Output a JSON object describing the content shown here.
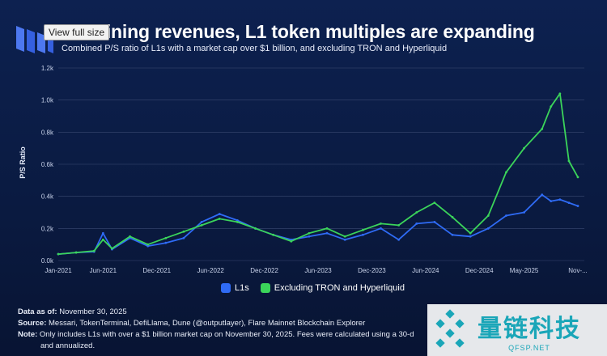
{
  "header": {
    "tooltip": "View full size",
    "title": "t declining revenues, L1 token multiples are expanding",
    "subtitle": "Combined P/S ratio of L1s with a market cap over $1 billion, and excluding TRON and Hyperliquid"
  },
  "colors": {
    "l1s": "#2f6bf5",
    "excl": "#3bd45a",
    "background": "#0b1a3d",
    "grid": "#3a4a72"
  },
  "legend": {
    "l1s": "L1s",
    "excl": "Excluding TRON and Hyperliquid"
  },
  "notes": {
    "data_as_of_label": "Data as of:",
    "data_as_of_value": " November 30, 2025",
    "source_label": "Source:",
    "source_value": " Messari, TokenTerminal, DefiLlama, Dune (@outputlayer), Flare Mainnet Blockchain Explorer",
    "note_label": "Note:",
    "note_value": " Only includes L1s with over a $1 billion market cap on November 30, 2025. Fees were calculated using a 30-d",
    "note_value2": "and annualized."
  },
  "watermark": {
    "cn": "量链科技",
    "en": "QFSP.NET"
  },
  "chart_data": {
    "type": "line",
    "ylabel": "P/S Ratio",
    "ylim": [
      0,
      1200
    ],
    "y_ticks": [
      "0.0k",
      "0.2k",
      "0.4k",
      "0.6k",
      "0.8k",
      "1.0k",
      "1.2k"
    ],
    "y_tick_values": [
      0,
      200,
      400,
      600,
      800,
      1000,
      1200
    ],
    "x_ticks": [
      "Jan-2021",
      "Jun-2021",
      "Dec-2021",
      "Jun-2022",
      "Dec-2022",
      "Jun-2023",
      "Dec-2023",
      "Jun-2024",
      "Dec-2024",
      "May-2025",
      "Nov-..."
    ],
    "x_tick_dates": [
      "2021-01",
      "2021-06",
      "2021-12",
      "2022-06",
      "2022-12",
      "2023-06",
      "2023-12",
      "2024-06",
      "2024-12",
      "2025-05",
      "2025-11"
    ],
    "grid": true,
    "legend_position": "bottom-center",
    "x": [
      "2021-01",
      "2021-03",
      "2021-05",
      "2021-06",
      "2021-07",
      "2021-09",
      "2021-11",
      "2022-01",
      "2022-03",
      "2022-05",
      "2022-07",
      "2022-09",
      "2022-11",
      "2023-01",
      "2023-03",
      "2023-05",
      "2023-07",
      "2023-09",
      "2023-11",
      "2024-01",
      "2024-03",
      "2024-05",
      "2024-07",
      "2024-09",
      "2024-11",
      "2025-01",
      "2025-03",
      "2025-05",
      "2025-07",
      "2025-08",
      "2025-09",
      "2025-10",
      "2025-11"
    ],
    "series": [
      {
        "name": "L1s",
        "values": [
          40,
          50,
          55,
          170,
          70,
          140,
          90,
          110,
          140,
          240,
          290,
          250,
          200,
          160,
          130,
          150,
          170,
          130,
          160,
          200,
          130,
          230,
          240,
          160,
          150,
          200,
          280,
          300,
          410,
          370,
          380,
          360,
          340
        ]
      },
      {
        "name": "Excluding TRON and Hyperliquid",
        "values": [
          40,
          50,
          60,
          130,
          75,
          150,
          100,
          140,
          180,
          220,
          260,
          240,
          200,
          160,
          120,
          170,
          200,
          150,
          190,
          230,
          220,
          300,
          360,
          270,
          170,
          280,
          550,
          700,
          820,
          960,
          1040,
          620,
          520
        ]
      }
    ]
  }
}
